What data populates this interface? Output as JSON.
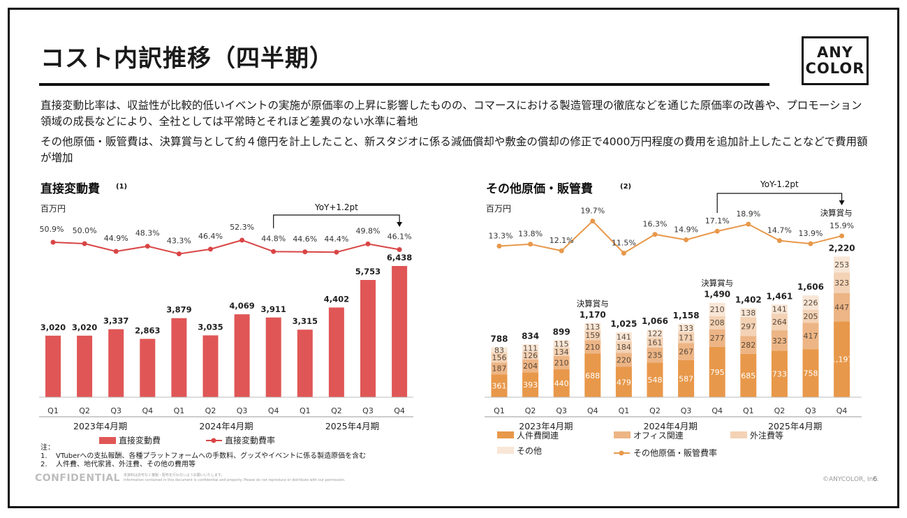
{
  "page": {
    "title": "コスト内訳推移（四半期）",
    "logo_lines": [
      "ANY",
      "COLOR"
    ],
    "body_1": "直接変動比率は、収益性が比較的低いイベントの実施が原価率の上昇に影響したものの、コマースにおける製造管理の徹底などを通じた原価率の改善や、プロモーション領域の成長などにより、全社としては平常時とそれほど差異のない水準に着地",
    "body_2": "その他原価・販管費は、決算賞与として約４億円を計上したこと、新スタジオに係る減価償却や敷金の償却の修正で4000万円程度の費用を追加計上したことなどで費用額が増加",
    "notes_title": "注：",
    "notes": [
      {
        "num": "1.",
        "text": "VTuberへの支払報酬、各種プラットフォームへの手数料、グッズやイベントに係る製造原価を含む"
      },
      {
        "num": "2.",
        "text": "人件費、地代家賃、外注費、その他の費用等"
      }
    ],
    "footer_confidential": "CONFIDENTIAL",
    "footer_fine_1": "本資料は許可なく複製・配布を行わないようお願いいたします。",
    "footer_fine_2": "Information contained in this document is confidential and property. Please do not reproduce or distribute with our permission.",
    "footer_copyright": "©ANYCOLOR, Inc.",
    "page_number": "6"
  },
  "colors": {
    "left_bar": "#E05656",
    "left_line": "#D94545",
    "labor": "#E8984A",
    "office": "#EDB585",
    "outsource": "#F3D2B5",
    "other": "#F8E6D6",
    "right_line": "#E8984A"
  },
  "chart_data": [
    {
      "type": "bar",
      "title": "直接変動費",
      "title_note": "(1)",
      "unit": "百万円",
      "categories": [
        "Q1",
        "Q2",
        "Q3",
        "Q4",
        "Q1",
        "Q2",
        "Q3",
        "Q4",
        "Q1",
        "Q2",
        "Q3",
        "Q4"
      ],
      "groups": [
        "2023年4月期",
        "2024年4月期",
        "2025年4月期"
      ],
      "series": [
        {
          "name": "直接変動費",
          "values": [
            3020,
            3020,
            3337,
            2863,
            3879,
            3035,
            4069,
            3911,
            3315,
            4402,
            5753,
            6438
          ]
        }
      ],
      "value_labels": [
        "3,020",
        "3,020",
        "3,337",
        "2,863",
        "3,879",
        "3,035",
        "4,069",
        "3,911",
        "3,315",
        "4,402",
        "5,753",
        "6,438"
      ],
      "line": {
        "name": "直接変動費率",
        "values": [
          50.9,
          50.0,
          44.9,
          48.3,
          43.3,
          46.4,
          52.3,
          44.8,
          44.6,
          44.4,
          49.8,
          46.1
        ],
        "labels": [
          "50.9%",
          "50.0%",
          "44.9%",
          "48.3%",
          "43.3%",
          "46.4%",
          "52.3%",
          "44.8%",
          "44.6%",
          "44.4%",
          "49.8%",
          "46.1%"
        ]
      },
      "annotation": "YoY+1.2pt",
      "ylim": [
        0,
        6800
      ]
    },
    {
      "type": "bar",
      "stacked": true,
      "title": "その他原価・販管費",
      "title_note": "(2)",
      "unit": "百万円",
      "categories": [
        "Q1",
        "Q2",
        "Q3",
        "Q4",
        "Q1",
        "Q2",
        "Q3",
        "Q4",
        "Q1",
        "Q2",
        "Q3",
        "Q4"
      ],
      "groups": [
        "2023年4月期",
        "2024年4月期",
        "2025年4月期"
      ],
      "series": [
        {
          "name": "人件費関連",
          "values": [
            361,
            393,
            440,
            688,
            479,
            548,
            587,
            795,
            685,
            733,
            758,
            1197
          ]
        },
        {
          "name": "オフィス関連",
          "values": [
            187,
            204,
            210,
            210,
            220,
            235,
            267,
            277,
            282,
            323,
            417,
            447
          ]
        },
        {
          "name": "外注費等",
          "values": [
            156,
            126,
            134,
            159,
            184,
            161,
            171,
            208,
            297,
            264,
            205,
            323
          ]
        },
        {
          "name": "その他",
          "values": [
            83,
            111,
            115,
            113,
            141,
            122,
            133,
            210,
            138,
            141,
            226,
            253
          ]
        }
      ],
      "totals": [
        788,
        834,
        899,
        1170,
        1025,
        1066,
        1158,
        1490,
        1402,
        1461,
        1606,
        2220
      ],
      "total_labels": [
        "788",
        "834",
        "899",
        "1,170",
        "1,025",
        "1,066",
        "1,158",
        "1,490",
        "1,402",
        "1,461",
        "1,606",
        "2,220"
      ],
      "segment_labels": [
        [
          "361",
          "393",
          "440",
          "688",
          "479",
          "548",
          "587",
          "795",
          "685",
          "733",
          "758",
          "1,197"
        ],
        [
          "187",
          "204",
          "210",
          "210",
          "220",
          "235",
          "267",
          "277",
          "282",
          "323",
          "417",
          "447"
        ],
        [
          "156",
          "126",
          "134",
          "159",
          "184",
          "161",
          "171",
          "208",
          "297",
          "264",
          "205",
          "323"
        ],
        [
          "83",
          "111",
          "115",
          "113",
          "141",
          "122",
          "133",
          "210",
          "138",
          "141",
          "226",
          "253"
        ]
      ],
      "line": {
        "name": "その他原価・販管費率",
        "values": [
          13.3,
          13.8,
          12.1,
          19.7,
          11.5,
          16.3,
          14.9,
          17.1,
          18.9,
          14.7,
          13.9,
          15.9
        ],
        "labels": [
          "13.3%",
          "13.8%",
          "12.1%",
          "19.7%",
          "11.5%",
          "16.3%",
          "14.9%",
          "17.1%",
          "18.9%",
          "14.7%",
          "13.9%",
          "15.9%"
        ]
      },
      "bonus_label": "決算賞与",
      "bonus_quarters": [
        3,
        7,
        11
      ],
      "annotation": "YoY-1.2pt",
      "ylim": [
        0,
        2350
      ]
    }
  ]
}
